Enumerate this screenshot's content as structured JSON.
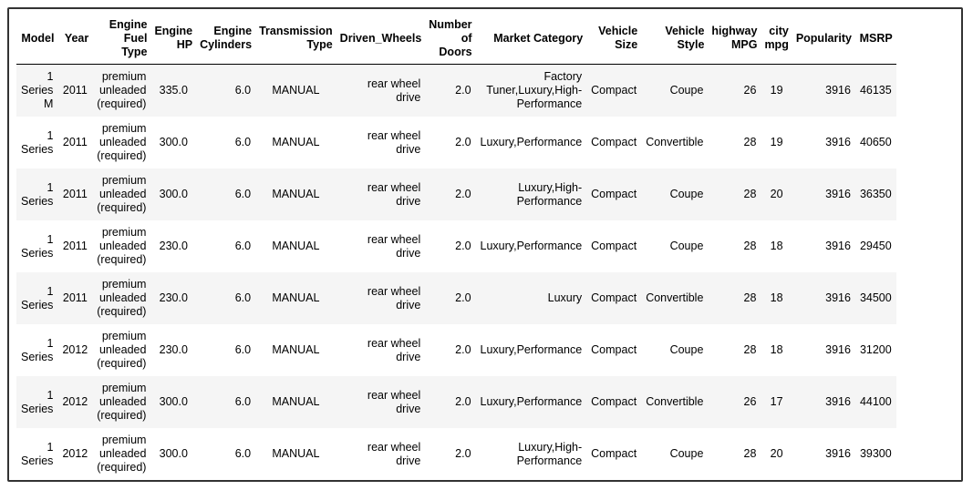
{
  "table": {
    "headers": [
      "Model",
      "Year",
      "Engine\nFuel\nType",
      "Engine\nHP",
      "Engine\nCylinders",
      "Transmission\nType",
      "Driven_Wheels",
      "Number\nof\nDoors",
      "Market Category",
      "Vehicle\nSize",
      "Vehicle\nStyle",
      "highway\nMPG",
      "city\nmpg",
      "Popularity",
      "MSRP"
    ],
    "rows": [
      [
        "1\nSeries\nM",
        "2011",
        "premium\nunleaded\n(required)",
        "335.0",
        "6.0",
        "MANUAL",
        "rear wheel drive",
        "2.0",
        "Factory\nTuner,Luxury,High-\nPerformance",
        "Compact",
        "Coupe",
        "26",
        "19",
        "3916",
        "46135"
      ],
      [
        "1\nSeries",
        "2011",
        "premium\nunleaded\n(required)",
        "300.0",
        "6.0",
        "MANUAL",
        "rear wheel drive",
        "2.0",
        "Luxury,Performance",
        "Compact",
        "Convertible",
        "28",
        "19",
        "3916",
        "40650"
      ],
      [
        "1\nSeries",
        "2011",
        "premium\nunleaded\n(required)",
        "300.0",
        "6.0",
        "MANUAL",
        "rear wheel drive",
        "2.0",
        "Luxury,High-\nPerformance",
        "Compact",
        "Coupe",
        "28",
        "20",
        "3916",
        "36350"
      ],
      [
        "1\nSeries",
        "2011",
        "premium\nunleaded\n(required)",
        "230.0",
        "6.0",
        "MANUAL",
        "rear wheel drive",
        "2.0",
        "Luxury,Performance",
        "Compact",
        "Coupe",
        "28",
        "18",
        "3916",
        "29450"
      ],
      [
        "1\nSeries",
        "2011",
        "premium\nunleaded\n(required)",
        "230.0",
        "6.0",
        "MANUAL",
        "rear wheel drive",
        "2.0",
        "Luxury",
        "Compact",
        "Convertible",
        "28",
        "18",
        "3916",
        "34500"
      ],
      [
        "1\nSeries",
        "2012",
        "premium\nunleaded\n(required)",
        "230.0",
        "6.0",
        "MANUAL",
        "rear wheel drive",
        "2.0",
        "Luxury,Performance",
        "Compact",
        "Coupe",
        "28",
        "18",
        "3916",
        "31200"
      ],
      [
        "1\nSeries",
        "2012",
        "premium\nunleaded\n(required)",
        "300.0",
        "6.0",
        "MANUAL",
        "rear wheel drive",
        "2.0",
        "Luxury,Performance",
        "Compact",
        "Convertible",
        "26",
        "17",
        "3916",
        "44100"
      ],
      [
        "1\nSeries",
        "2012",
        "premium\nunleaded\n(required)",
        "300.0",
        "6.0",
        "MANUAL",
        "rear wheel drive",
        "2.0",
        "Luxury,High-\nPerformance",
        "Compact",
        "Coupe",
        "28",
        "20",
        "3916",
        "39300"
      ]
    ]
  }
}
